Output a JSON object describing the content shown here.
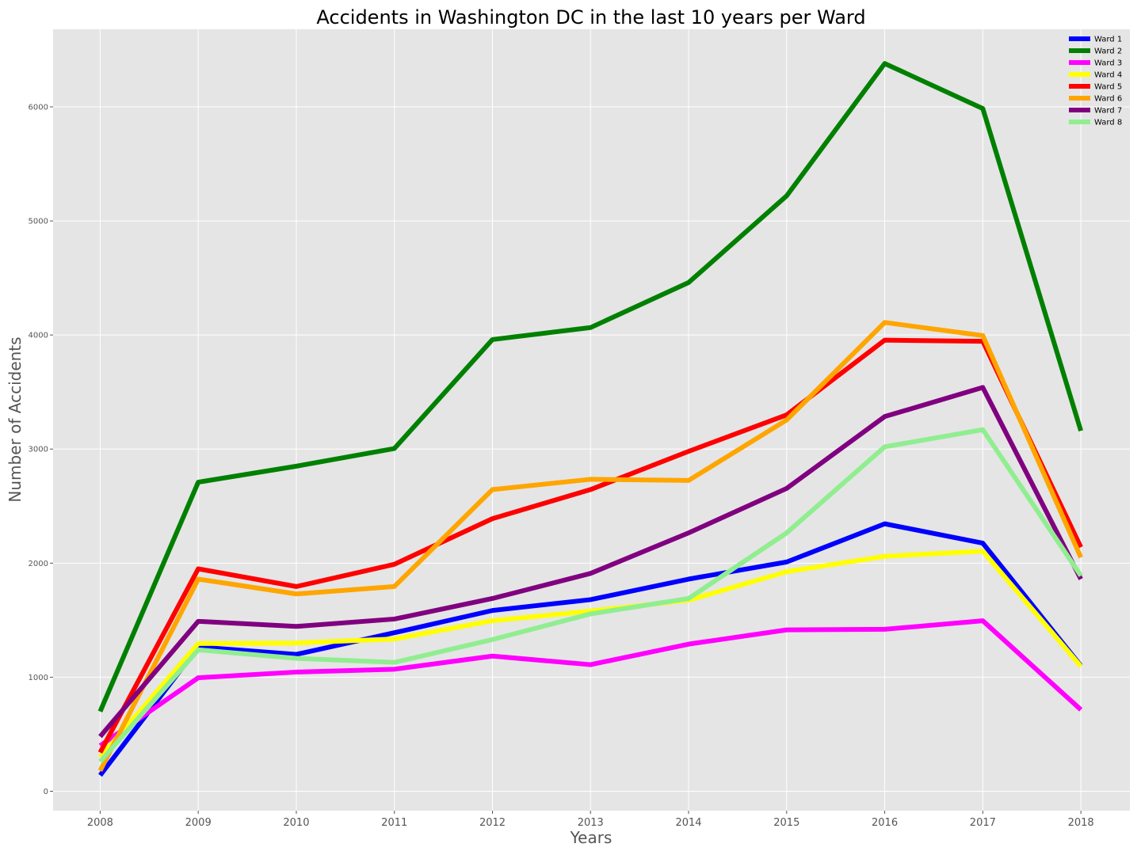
{
  "chart_data": {
    "type": "line",
    "title": "Accidents in Washington DC in the last 10 years per Ward",
    "xlabel": "Years",
    "ylabel": "Number of Accidents",
    "x": [
      "2008",
      "2009",
      "2010",
      "2011",
      "2012",
      "2013",
      "2014",
      "2015",
      "2016",
      "2017",
      "2018"
    ],
    "xlim": [
      2007.52,
      2018.5
    ],
    "ylim": [
      -170,
      6680
    ],
    "yticks": [
      0,
      1000,
      2000,
      3000,
      4000,
      5000,
      6000
    ],
    "grid": true,
    "legend_position": "top-right",
    "series": [
      {
        "name": "Ward 1",
        "color": "#0000ff",
        "values": [
          140,
          1265,
          1200,
          1390,
          1585,
          1680,
          1860,
          2010,
          2345,
          2175,
          1100
        ]
      },
      {
        "name": "Ward 2",
        "color": "#008000",
        "values": [
          700,
          2710,
          2850,
          3005,
          3960,
          4065,
          4460,
          5220,
          6380,
          5985,
          3160
        ]
      },
      {
        "name": "Ward 3",
        "color": "#ff00ff",
        "values": [
          400,
          995,
          1045,
          1070,
          1185,
          1110,
          1290,
          1415,
          1420,
          1495,
          715
        ]
      },
      {
        "name": "Ward 4",
        "color": "#ffff00",
        "values": [
          300,
          1295,
          1300,
          1335,
          1495,
          1580,
          1675,
          1925,
          2060,
          2105,
          1095
        ]
      },
      {
        "name": "Ward 5",
        "color": "#ff0000",
        "values": [
          340,
          1950,
          1795,
          1990,
          2390,
          2645,
          2980,
          3300,
          3955,
          3945,
          2140
        ]
      },
      {
        "name": "Ward 6",
        "color": "#ffa500",
        "values": [
          180,
          1860,
          1730,
          1795,
          2645,
          2735,
          2725,
          3255,
          4110,
          3995,
          2050
        ]
      },
      {
        "name": "Ward 7",
        "color": "#800080",
        "values": [
          480,
          1490,
          1445,
          1510,
          1690,
          1910,
          2265,
          2655,
          3285,
          3540,
          1860
        ]
      },
      {
        "name": "Ward 8",
        "color": "#90ee90",
        "values": [
          260,
          1240,
          1165,
          1130,
          1330,
          1555,
          1690,
          2265,
          3020,
          3170,
          1890
        ]
      }
    ]
  }
}
